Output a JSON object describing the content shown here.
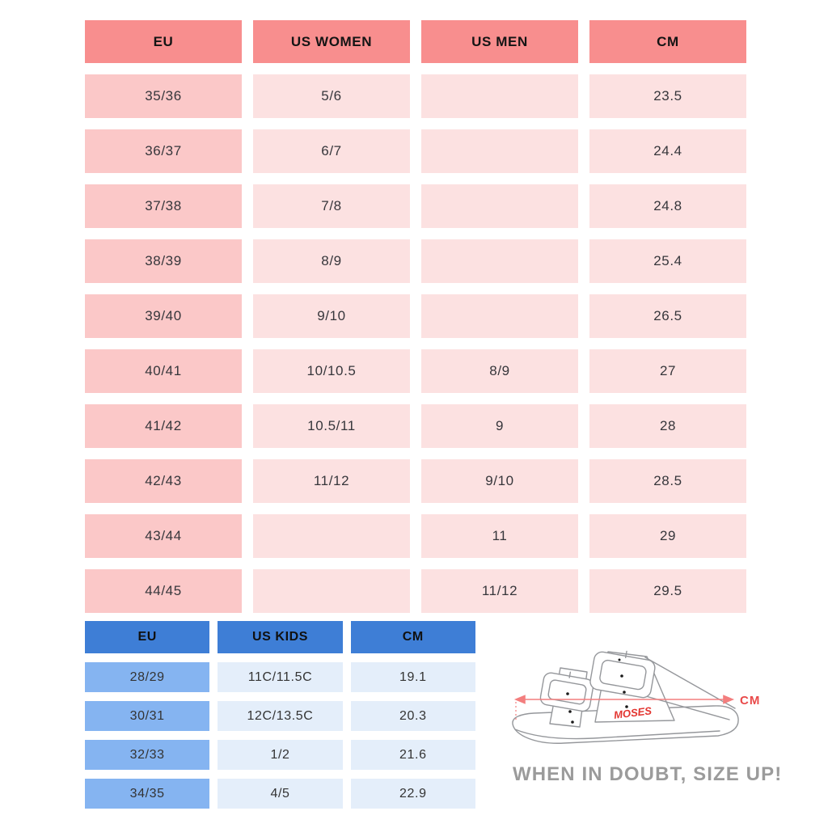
{
  "adult_table": {
    "headers": [
      "EU",
      "US WOMEN",
      "US MEN",
      "CM"
    ],
    "rows": [
      [
        "35/36",
        "5/6",
        "",
        "23.5"
      ],
      [
        "36/37",
        "6/7",
        "",
        "24.4"
      ],
      [
        "37/38",
        "7/8",
        "",
        "24.8"
      ],
      [
        "38/39",
        "8/9",
        "",
        "25.4"
      ],
      [
        "39/40",
        "9/10",
        "",
        "26.5"
      ],
      [
        "40/41",
        "10/10.5",
        "8/9",
        "27"
      ],
      [
        "41/42",
        "10.5/11",
        "9",
        "28"
      ],
      [
        "42/43",
        "11/12",
        "9/10",
        "28.5"
      ],
      [
        "43/44",
        "",
        "11",
        "29"
      ],
      [
        "44/45",
        "",
        "11/12",
        "29.5"
      ]
    ]
  },
  "kids_table": {
    "headers": [
      "EU",
      "US KIDS",
      "CM"
    ],
    "rows": [
      [
        "28/29",
        "11C/11.5C",
        "19.1"
      ],
      [
        "30/31",
        "12C/13.5C",
        "20.3"
      ],
      [
        "32/33",
        "1/2",
        "21.6"
      ],
      [
        "34/35",
        "4/5",
        "22.9"
      ]
    ]
  },
  "illustration": {
    "brand_label": "MOSES",
    "measure_label": "CM"
  },
  "footer_note": "WHEN IN DOUBT, SIZE UP!",
  "colors": {
    "adult_header": "#F88E8E",
    "adult_first_col": "#FBC8C8",
    "adult_cell": "#FCE1E1",
    "kids_header": "#3E7ED6",
    "kids_first_col": "#85B4F1",
    "kids_cell": "#E4EEFA",
    "arrow_red": "#F37E7E",
    "label_red": "#E94A4A",
    "brand_red": "#E3342F",
    "line_gray": "#95979B",
    "note_gray": "#9B9B9B"
  }
}
